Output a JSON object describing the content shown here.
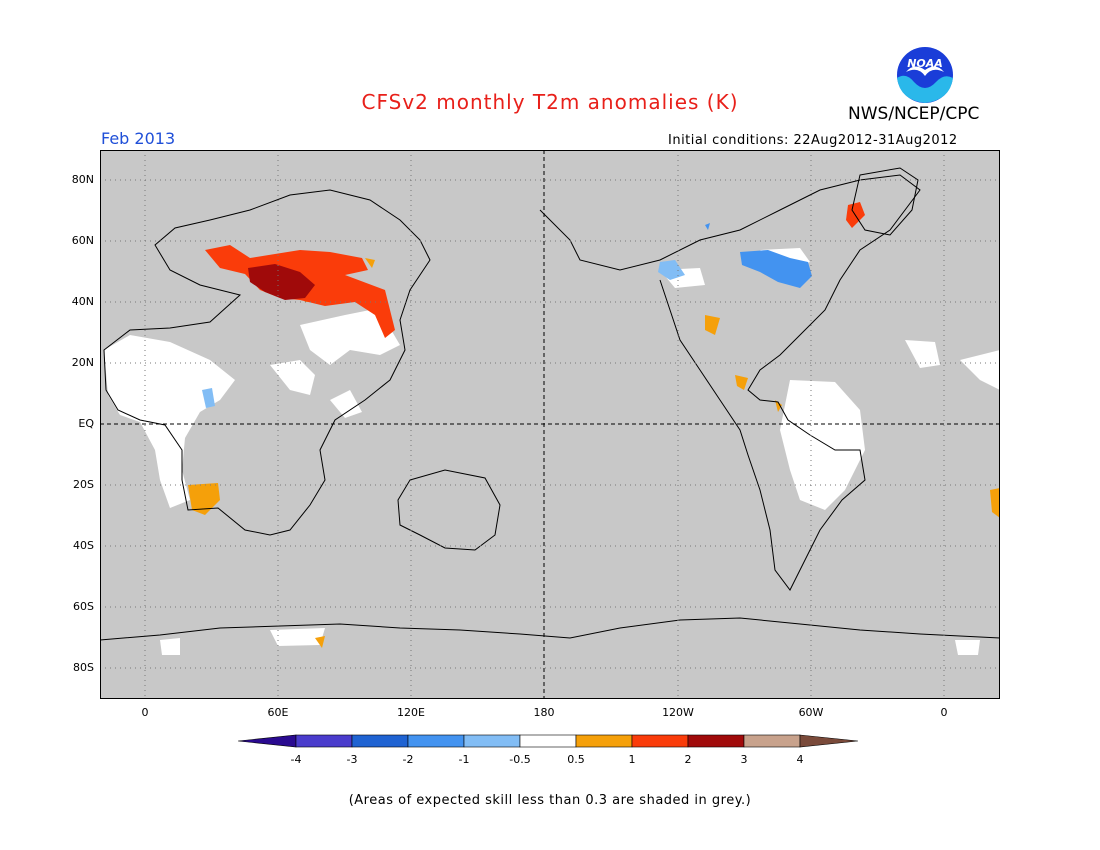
{
  "title": "CFSv2 monthly T2m anomalies (K)",
  "organization": "NWS/NCEP/CPC",
  "logo_text": "NOAA",
  "period": "Feb 2013",
  "initial_conditions": "Initial conditions: 22Aug2012-31Aug2012",
  "lat_labels": [
    "80N",
    "60N",
    "40N",
    "20N",
    "EQ",
    "20S",
    "40S",
    "60S",
    "80S"
  ],
  "lon_labels": [
    "0",
    "60E",
    "120E",
    "180",
    "120W",
    "60W",
    "0"
  ],
  "colorbar": {
    "labels": [
      "-4",
      "-3",
      "-2",
      "-1",
      "-0.5",
      "0.5",
      "1",
      "2",
      "3",
      "4"
    ],
    "colors": [
      "#2a0a90",
      "#4a3ccc",
      "#1f63d2",
      "#4393f0",
      "#82bdf5",
      "#ffffff",
      "#f5a00a",
      "#fa3c0a",
      "#a00a0a",
      "#c8a28c",
      "#7a4a3a"
    ]
  },
  "note": "(Areas of expected skill less than 0.3 are shaded in grey.)",
  "colors": {
    "title": "#e8201a",
    "period": "#1f4fd8",
    "low_skill": "#c8c8c8",
    "no_anomaly": "#ffffff"
  }
}
